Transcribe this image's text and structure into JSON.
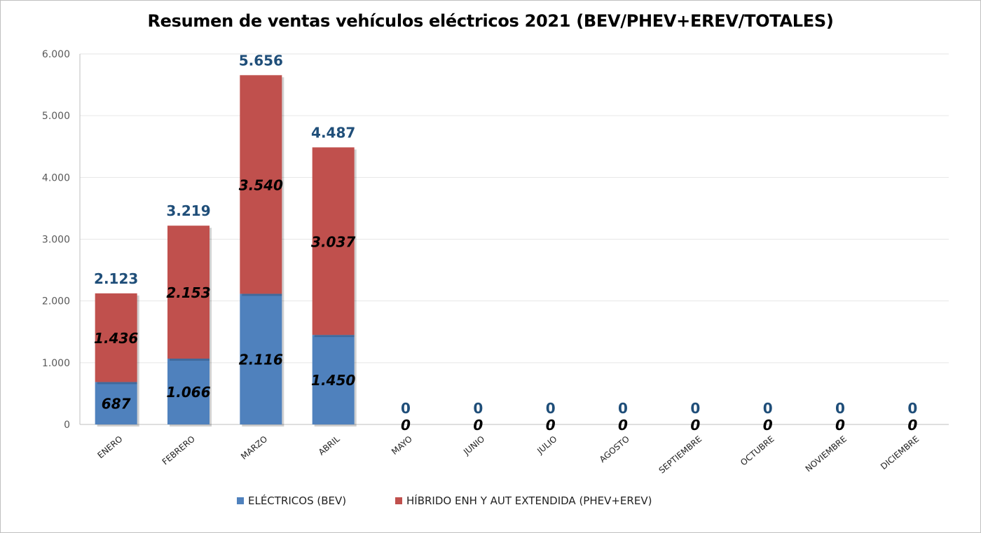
{
  "chart_data": {
    "type": "bar",
    "stacked": true,
    "title": "Resumen de ventas vehículos eléctricos 2021 (BEV/PHEV+EREV/TOTALES)",
    "categories": [
      "ENERO",
      "FEBRERO",
      "MARZO",
      "ABRIL",
      "MAYO",
      "JUNIO",
      "JULIO",
      "AGOSTO",
      "SEPTIEMBRE",
      "OCTUBRE",
      "NOVIEMBRE",
      "DICIEMBRE"
    ],
    "series": [
      {
        "name": "ELÉCTRICOS (BEV)",
        "color": "#4f81bd",
        "values": [
          687,
          1066,
          2116,
          1450,
          0,
          0,
          0,
          0,
          0,
          0,
          0,
          0
        ]
      },
      {
        "name": "HÍBRIDO ENH Y AUT EXTENDIDA (PHEV+EREV)",
        "color": "#c0504d",
        "values": [
          1436,
          2153,
          3540,
          3037,
          0,
          0,
          0,
          0,
          0,
          0,
          0,
          0
        ]
      }
    ],
    "totals": [
      2123,
      3219,
      5656,
      4487,
      0,
      0,
      0,
      0,
      0,
      0,
      0,
      0
    ],
    "ylim": [
      0,
      6000
    ],
    "yticks": [
      0,
      1000,
      2000,
      3000,
      4000,
      5000,
      6000
    ],
    "ytick_labels": [
      "0",
      "1.000",
      "2.000",
      "3.000",
      "4.000",
      "5.000",
      "6.000"
    ],
    "xlabel": "",
    "ylabel": "",
    "grid": true,
    "legend_position": "bottom",
    "total_label_color": "#1f4e79",
    "segment_label_color": "#000000"
  }
}
